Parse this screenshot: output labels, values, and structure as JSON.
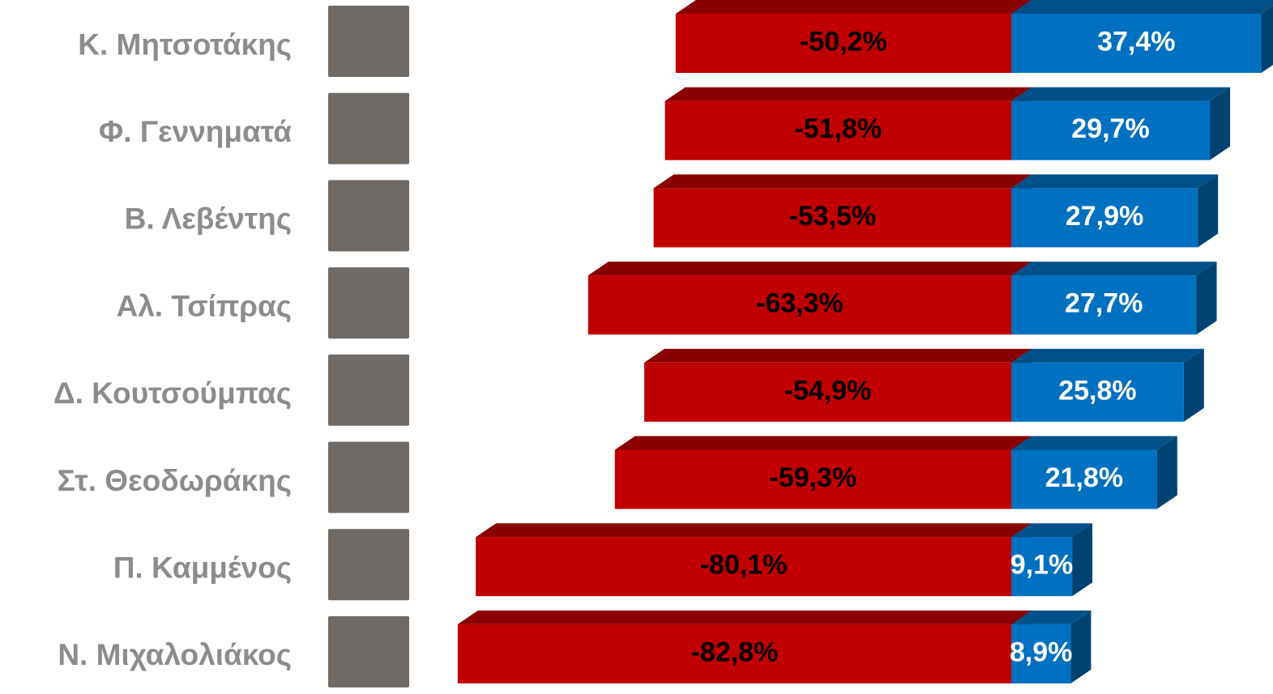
{
  "chart_data": {
    "type": "diverging-bar",
    "categories": [
      "Κ. Μητσοτάκης",
      "Φ. Γεννηματά",
      "Β. Λεβέντης",
      "Αλ. Τσίπρας",
      "Δ. Κουτσούμπας",
      "Στ. Θεοδωράκης",
      "Π. Καμμένος",
      "Ν. Μιχαλολιάκος"
    ],
    "series": [
      {
        "color": "#c00000",
        "values": [
          -50.2,
          -51.8,
          -53.5,
          -63.3,
          -54.9,
          -59.3,
          -80.1,
          -82.8
        ],
        "value_labels": [
          "-50,2%",
          "-51,8%",
          "-53,5%",
          "-63,3%",
          "-54,9%",
          "-59,3%",
          "-80,1%",
          "-82,8%"
        ]
      },
      {
        "color": "#0070c0",
        "values": [
          37.4,
          29.7,
          27.9,
          27.7,
          25.8,
          21.8,
          9.1,
          8.9
        ],
        "value_labels": [
          "37,4%",
          "29,7%",
          "27,9%",
          "27,7%",
          "25,8%",
          "21,8%",
          "9,1%",
          "8,9%"
        ]
      }
    ],
    "xlim": [
      -90,
      38
    ]
  }
}
